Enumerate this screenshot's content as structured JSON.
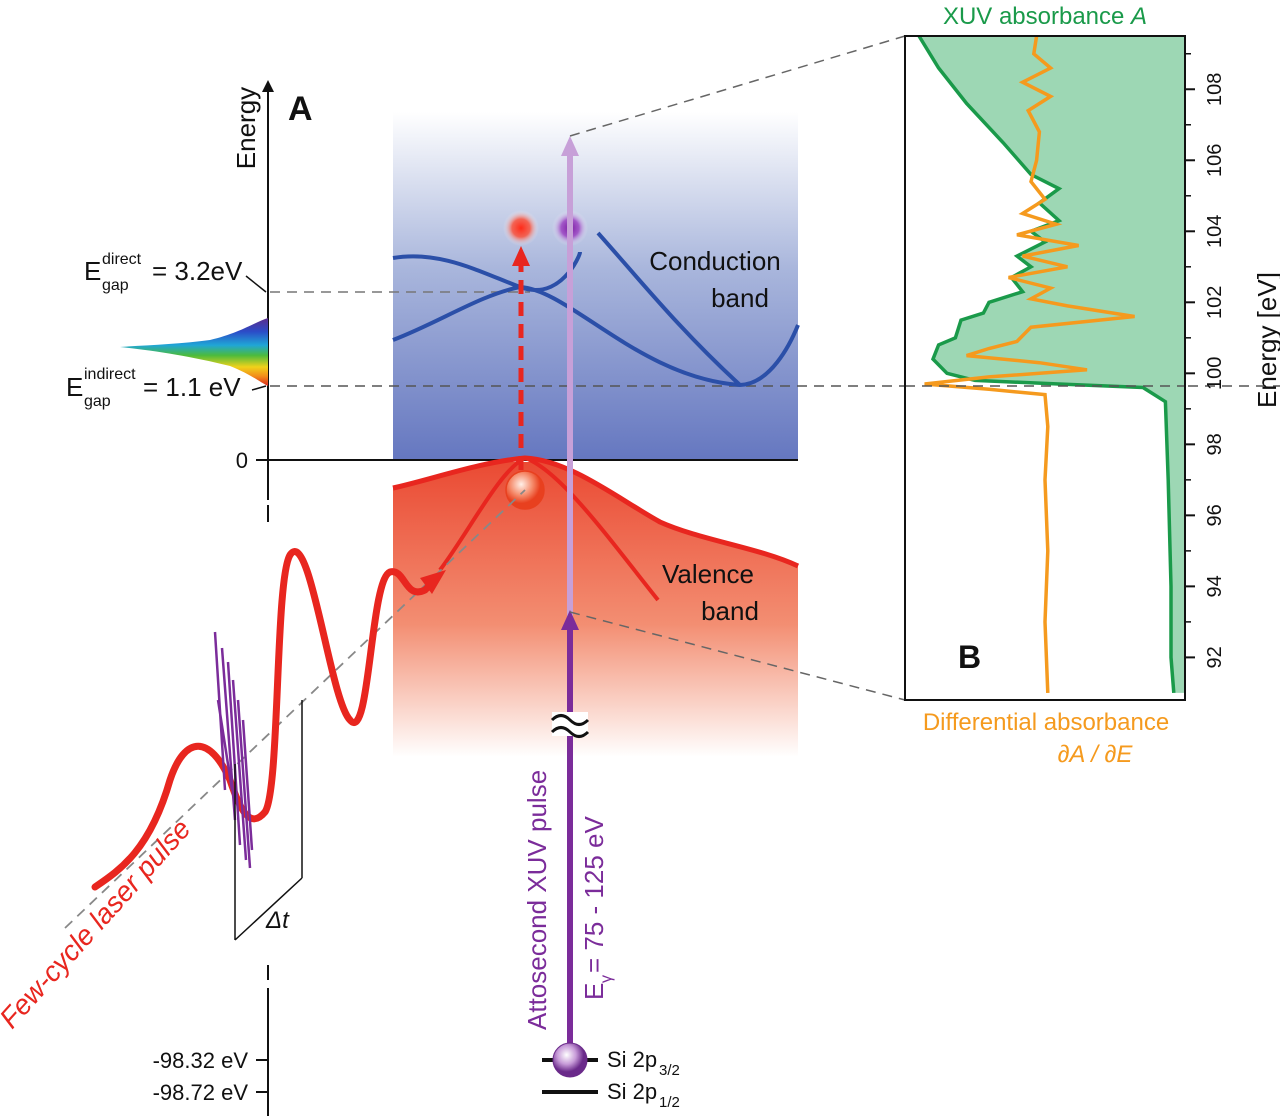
{
  "panel_a": {
    "label": "A",
    "energy_axis_label": "Energy",
    "zero_label": "0",
    "direct_gap": {
      "prefix": "E",
      "sup": "direct",
      "sub": "gap",
      "value": "= 3.2eV"
    },
    "indirect_gap": {
      "prefix": "E",
      "sup": "indirect",
      "sub": "gap",
      "value": "= 1.1 eV"
    },
    "conduction_band": [
      "Conduction",
      "band"
    ],
    "valence_band": [
      "Valence",
      "band"
    ],
    "laser_label": "Few-cycle laser pulse",
    "delay_label": "Δt",
    "xuv_label": "Attosecond XUV pulse",
    "xuv_energy": {
      "prefix": "E",
      "sub": "γ",
      "value": " = 75 - 125 eV"
    },
    "core_levels": [
      {
        "energy": "-98.32 eV",
        "name": "Si 2p",
        "sub": "3/2"
      },
      {
        "energy": "-98.72 eV",
        "name": "Si 2p",
        "sub": "1/2"
      }
    ],
    "colors": {
      "conduction": "#2b4fa8",
      "valence": "#e8261f",
      "xuv": "#7b2c9a"
    }
  },
  "panel_b": {
    "label": "B",
    "top_title": {
      "text": "XUV absorbance ",
      "var": "A"
    },
    "bottom_title": [
      "Differential absorbance",
      "∂A / ∂E"
    ],
    "y_axis_label": "Energy [eV]",
    "colors": {
      "absorbance": "#1a9a4a",
      "fill": "#9dd7b4",
      "differential": "#f59a1e"
    }
  },
  "chart_data": {
    "type": "line",
    "ylabel": "Energy [eV]",
    "ylim": [
      90.8,
      109.5
    ],
    "yticks": [
      "92",
      "94",
      "96",
      "98",
      "100",
      "102",
      "104",
      "106",
      "108"
    ],
    "series": [
      {
        "name": "XUV absorbance A",
        "points": [
          [
            0.05,
            109.5
          ],
          [
            0.12,
            108.6
          ],
          [
            0.22,
            107.6
          ],
          [
            0.35,
            106.5
          ],
          [
            0.45,
            105.6
          ],
          [
            0.55,
            105.2
          ],
          [
            0.48,
            104.8
          ],
          [
            0.55,
            104.3
          ],
          [
            0.45,
            104.0
          ],
          [
            0.5,
            103.7
          ],
          [
            0.4,
            103.3
          ],
          [
            0.45,
            103.0
          ],
          [
            0.38,
            102.7
          ],
          [
            0.42,
            102.3
          ],
          [
            0.3,
            102.0
          ],
          [
            0.28,
            101.7
          ],
          [
            0.2,
            101.5
          ],
          [
            0.18,
            101.0
          ],
          [
            0.12,
            100.8
          ],
          [
            0.1,
            100.4
          ],
          [
            0.15,
            100.0
          ],
          [
            0.25,
            99.8
          ],
          [
            0.55,
            99.7
          ],
          [
            0.85,
            99.6
          ],
          [
            0.93,
            99.2
          ],
          [
            0.94,
            97.0
          ],
          [
            0.95,
            94.0
          ],
          [
            0.95,
            92.0
          ],
          [
            0.96,
            91.0
          ]
        ]
      },
      {
        "name": "Differential absorbance ∂A/∂E",
        "points": [
          [
            0.47,
            109.5
          ],
          [
            0.46,
            109.0
          ],
          [
            0.52,
            108.6
          ],
          [
            0.42,
            108.2
          ],
          [
            0.52,
            107.8
          ],
          [
            0.44,
            107.4
          ],
          [
            0.48,
            106.8
          ],
          [
            0.47,
            106.0
          ],
          [
            0.45,
            105.4
          ],
          [
            0.5,
            104.9
          ],
          [
            0.42,
            104.5
          ],
          [
            0.54,
            104.2
          ],
          [
            0.4,
            103.9
          ],
          [
            0.62,
            103.6
          ],
          [
            0.42,
            103.3
          ],
          [
            0.58,
            103.0
          ],
          [
            0.37,
            102.7
          ],
          [
            0.52,
            102.4
          ],
          [
            0.45,
            102.1
          ],
          [
            0.58,
            101.9
          ],
          [
            0.82,
            101.6
          ],
          [
            0.45,
            101.3
          ],
          [
            0.4,
            100.9
          ],
          [
            0.3,
            100.7
          ],
          [
            0.22,
            100.5
          ],
          [
            0.48,
            100.3
          ],
          [
            0.65,
            100.1
          ],
          [
            0.3,
            99.9
          ],
          [
            0.07,
            99.7
          ],
          [
            0.3,
            99.55
          ],
          [
            0.5,
            99.4
          ],
          [
            0.51,
            98.5
          ],
          [
            0.5,
            97.0
          ],
          [
            0.51,
            95.0
          ],
          [
            0.5,
            93.0
          ],
          [
            0.51,
            91.0
          ]
        ]
      }
    ]
  }
}
